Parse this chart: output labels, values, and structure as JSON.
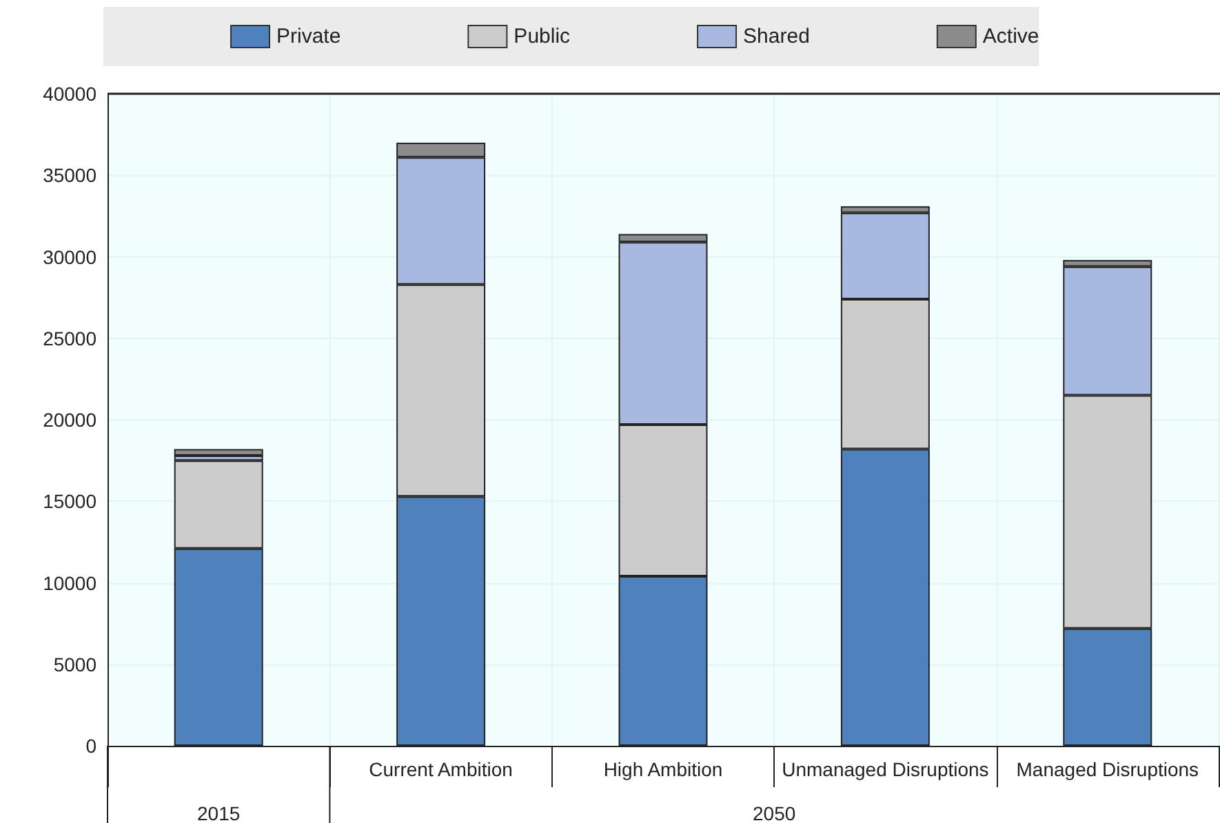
{
  "chart_data": {
    "type": "bar",
    "stacked": true,
    "categories": [
      null,
      "Current Ambition",
      "High Ambition",
      "Unmanaged Disruptions",
      "Managed Disruptions"
    ],
    "series": [
      {
        "name": "Private",
        "color": "#4f81bd",
        "values": [
          12100,
          15300,
          10400,
          18200,
          7200
        ]
      },
      {
        "name": "Public",
        "color": "#cccccc",
        "values": [
          5400,
          13000,
          9300,
          9200,
          14300
        ]
      },
      {
        "name": "Shared",
        "color": "#a7b8e1",
        "values": [
          300,
          7800,
          11200,
          5300,
          7900
        ]
      },
      {
        "name": "Active",
        "color": "#8c8c8c",
        "values": [
          400,
          900,
          500,
          400,
          400
        ]
      }
    ],
    "ylim": [
      0,
      40000
    ],
    "yticks": [
      0,
      5000,
      10000,
      15000,
      20000,
      25000,
      30000,
      35000,
      40000
    ],
    "annotations": [
      "2015",
      "2050"
    ],
    "grid": true,
    "legend": "top"
  }
}
